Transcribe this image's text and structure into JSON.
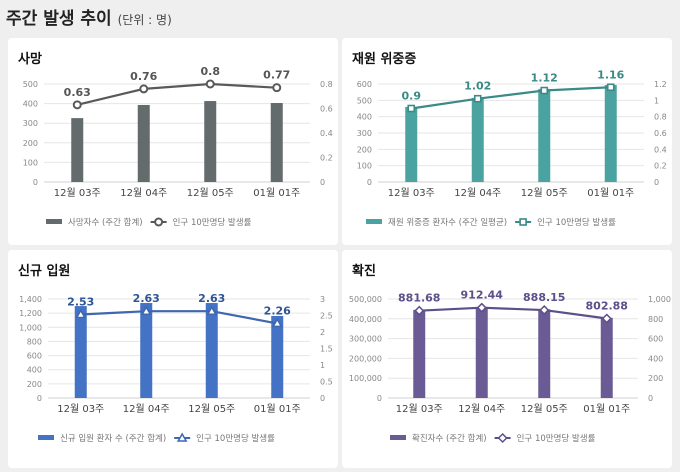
{
  "page": {
    "title": "주간 발생 추이",
    "unit": "(단위 : 명)"
  },
  "chart_data": [
    {
      "type": "bar+line",
      "title": "사망",
      "categories": [
        "12월 03주",
        "12월 04주",
        "12월 05주",
        "01월 01주"
      ],
      "series": [
        {
          "name": "사망자수 (주간 합계)",
          "kind": "bar",
          "axis": "left",
          "values": [
            326,
            393,
            413,
            403
          ],
          "color": "#636b6d"
        },
        {
          "name": "인구 10만명당 발생률",
          "kind": "line",
          "axis": "right",
          "marker": "circle",
          "values": [
            0.63,
            0.76,
            0.8,
            0.77
          ],
          "labels": [
            "0.63",
            "0.76",
            "0.8",
            "0.77"
          ],
          "color": "#595959",
          "label_color": "#555555"
        }
      ],
      "yleft": {
        "lim": [
          0,
          500
        ],
        "ticks": [
          "0",
          "100",
          "200",
          "300",
          "400",
          "500"
        ]
      },
      "yright": {
        "lim": [
          0,
          0.8
        ],
        "ticks": [
          "0",
          "0.2",
          "0.4",
          "0.6",
          "0.8"
        ]
      },
      "grid": true,
      "legend": "bottom"
    },
    {
      "type": "bar+line",
      "title": "재원 위중증",
      "categories": [
        "12월 03주",
        "12월 04주",
        "12월 05주",
        "01월 01주"
      ],
      "series": [
        {
          "name": "재원 위중증 환자수 (주간 일평균)",
          "kind": "bar",
          "axis": "left",
          "values": [
            460,
            515,
            570,
            594
          ],
          "color": "#4aa3a0"
        },
        {
          "name": "인구 10만명당 발생률",
          "kind": "line",
          "axis": "right",
          "marker": "square",
          "values": [
            0.9,
            1.02,
            1.12,
            1.16
          ],
          "labels": [
            "0.9",
            "1.02",
            "1.12",
            "1.16"
          ],
          "color": "#3a8a87",
          "label_color": "#3a8a87"
        }
      ],
      "yleft": {
        "lim": [
          0,
          600
        ],
        "ticks": [
          "0",
          "100",
          "200",
          "300",
          "400",
          "500",
          "600"
        ]
      },
      "yright": {
        "lim": [
          0,
          1.2
        ],
        "ticks": [
          "0",
          "0.2",
          "0.4",
          "0.6",
          "0.8",
          "1",
          "1.2"
        ]
      },
      "grid": true,
      "legend": "bottom"
    },
    {
      "type": "bar+line",
      "title": "신규 입원",
      "categories": [
        "12월 03주",
        "12월 04주",
        "12월 05주",
        "01월 01주"
      ],
      "series": [
        {
          "name": "신규 입원 환자 수 (주간 합계)",
          "kind": "bar",
          "axis": "left",
          "values": [
            1300,
            1343,
            1343,
            1160
          ],
          "color": "#4472c4"
        },
        {
          "name": "인구 10만명당 발생률",
          "kind": "line",
          "axis": "right",
          "marker": "triangle",
          "values": [
            2.53,
            2.63,
            2.63,
            2.26
          ],
          "labels": [
            "2.53",
            "2.63",
            "2.63",
            "2.26"
          ],
          "color": "#3f66b0",
          "label_color": "#2f5597"
        }
      ],
      "yleft": {
        "lim": [
          0,
          1400
        ],
        "ticks": [
          "0",
          "200",
          "400",
          "600",
          "800",
          "1,000",
          "1,200",
          "1,400"
        ]
      },
      "yright": {
        "lim": [
          0,
          3
        ],
        "ticks": [
          "0",
          "0.5",
          "1",
          "1.5",
          "2",
          "2.5",
          "3"
        ]
      },
      "grid": true,
      "legend": "bottom"
    },
    {
      "type": "bar+line",
      "title": "확진",
      "categories": [
        "12월 03주",
        "12월 04주",
        "12월 05주",
        "01월 01주"
      ],
      "series": [
        {
          "name": "확진자수 (주간 합계)",
          "kind": "bar",
          "axis": "left",
          "values": [
            445000,
            460000,
            448000,
            405000
          ],
          "color": "#6b5b95"
        },
        {
          "name": "인구 10만명당 발생률",
          "kind": "line",
          "axis": "right",
          "marker": "diamond",
          "values": [
            881.68,
            912.44,
            888.15,
            802.88
          ],
          "labels": [
            "881.68",
            "912.44",
            "888.15",
            "802.88"
          ],
          "color": "#5d4f8a",
          "label_color": "#5d4f8a"
        }
      ],
      "yleft": {
        "lim": [
          0,
          500000
        ],
        "ticks": [
          "0",
          "100,000",
          "200,000",
          "300,000",
          "400,000",
          "500,000"
        ]
      },
      "yright": {
        "lim": [
          0,
          1000
        ],
        "ticks": [
          "0",
          "200",
          "400",
          "600",
          "800",
          "1,000"
        ]
      },
      "grid": true,
      "legend": "bottom"
    }
  ]
}
